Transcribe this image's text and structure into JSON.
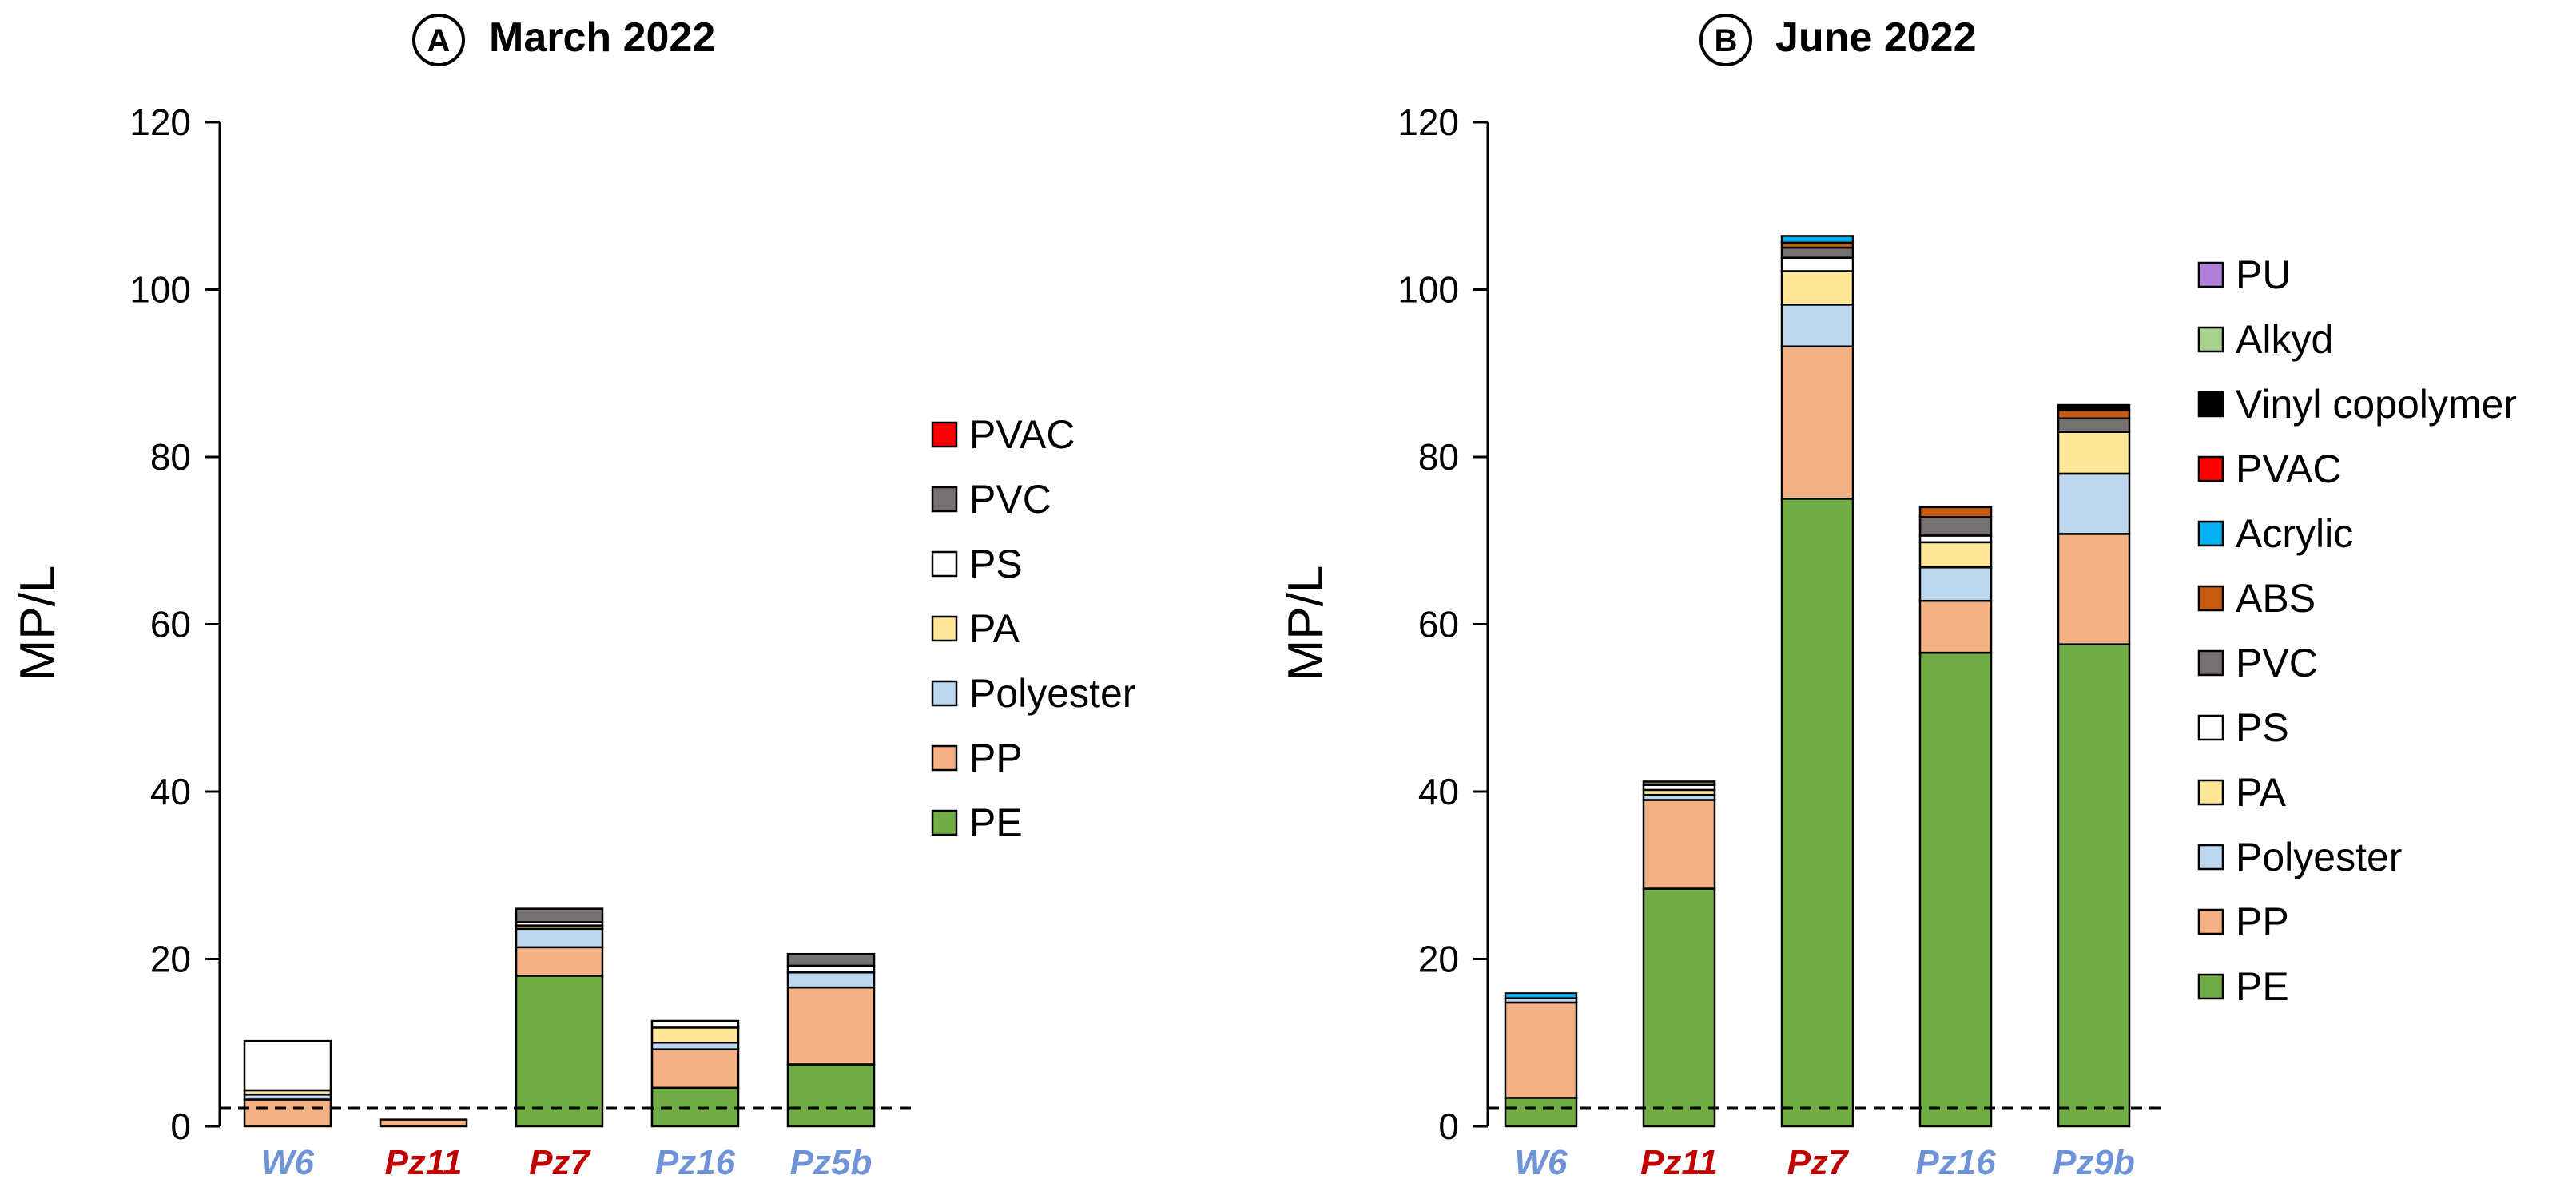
{
  "figure": {
    "panels": [
      {
        "letter": "A",
        "title": "March 2022",
        "ylabel": "MP/L",
        "ylim": [
          0,
          120
        ],
        "yticks": [
          0,
          20,
          40,
          60,
          80,
          100,
          120
        ],
        "threshold": 2.2
      },
      {
        "letter": "B",
        "title": "June 2022",
        "ylabel": "MP/L",
        "ylim": [
          0,
          120
        ],
        "yticks": [
          0,
          20,
          40,
          60,
          80,
          100,
          120
        ],
        "threshold": 2.2
      }
    ]
  },
  "chart_data": [
    {
      "type": "bar",
      "stacked": true,
      "title": "March 2022",
      "ylabel": "MP/L",
      "ylim": [
        0,
        120
      ],
      "grid": false,
      "legend_position": "right",
      "threshold_line": 2.2,
      "categories": [
        {
          "label": "W6",
          "color": "#6e93d6"
        },
        {
          "label": "Pz11",
          "color": "#c00000"
        },
        {
          "label": "Pz7",
          "color": "#c00000"
        },
        {
          "label": "Pz16",
          "color": "#6e93d6"
        },
        {
          "label": "Pz5b",
          "color": "#6e93d6"
        }
      ],
      "series": [
        {
          "name": "PE",
          "color": "#70ad47",
          "values": [
            0,
            0,
            18.0,
            4.6,
            7.4
          ]
        },
        {
          "name": "PP",
          "color": "#f4b183",
          "values": [
            3.2,
            0.8,
            3.4,
            4.6,
            9.2
          ]
        },
        {
          "name": "Polyester",
          "color": "#bdd7ee",
          "values": [
            0.6,
            0,
            2.2,
            0.8,
            1.8
          ]
        },
        {
          "name": "PA",
          "color": "#ffe699",
          "values": [
            0.5,
            0,
            0.4,
            1.8,
            0
          ]
        },
        {
          "name": "PS",
          "color": "#ffffff",
          "values": [
            5.9,
            0,
            0.4,
            0.8,
            0.8
          ]
        },
        {
          "name": "PVC",
          "color": "#767171",
          "values": [
            0,
            0,
            1.6,
            0,
            1.4
          ]
        },
        {
          "name": "PVAC",
          "color": "#ff0000",
          "values": [
            0,
            0,
            0,
            0,
            0
          ]
        }
      ]
    },
    {
      "type": "bar",
      "stacked": true,
      "title": "June 2022",
      "ylabel": "MP/L",
      "ylim": [
        0,
        120
      ],
      "grid": false,
      "legend_position": "right",
      "threshold_line": 2.2,
      "categories": [
        {
          "label": "W6",
          "color": "#6e93d6"
        },
        {
          "label": "Pz11",
          "color": "#c00000"
        },
        {
          "label": "Pz7",
          "color": "#c00000"
        },
        {
          "label": "Pz16",
          "color": "#6e93d6"
        },
        {
          "label": "Pz9b",
          "color": "#6e93d6"
        }
      ],
      "series": [
        {
          "name": "PE",
          "color": "#70ad47",
          "values": [
            3.4,
            28.4,
            75.0,
            56.6,
            57.6
          ]
        },
        {
          "name": "PP",
          "color": "#f4b183",
          "values": [
            11.4,
            10.6,
            18.2,
            6.2,
            13.2
          ]
        },
        {
          "name": "Polyester",
          "color": "#bdd7ee",
          "values": [
            0.5,
            0.6,
            5.0,
            4.0,
            7.2
          ]
        },
        {
          "name": "PA",
          "color": "#ffe699",
          "values": [
            0,
            0.6,
            4.0,
            3.0,
            5.0
          ]
        },
        {
          "name": "PS",
          "color": "#ffffff",
          "values": [
            0,
            0.6,
            1.6,
            0.8,
            0
          ]
        },
        {
          "name": "PVC",
          "color": "#767171",
          "values": [
            0,
            0.4,
            1.2,
            2.2,
            1.6
          ]
        },
        {
          "name": "ABS",
          "color": "#c55a11",
          "values": [
            0,
            0,
            0.6,
            1.2,
            1.0
          ]
        },
        {
          "name": "Acrylic",
          "color": "#00b0f0",
          "values": [
            0.6,
            0,
            0.8,
            0,
            0
          ]
        },
        {
          "name": "PVAC",
          "color": "#ff0000",
          "values": [
            0,
            0,
            0,
            0,
            0
          ]
        },
        {
          "name": "Vinyl copolymer",
          "color": "#000000",
          "values": [
            0,
            0,
            0,
            0,
            0.6
          ]
        },
        {
          "name": "Alkyd",
          "color": "#a9d18e",
          "values": [
            0,
            0,
            0,
            0,
            0
          ]
        },
        {
          "name": "PU",
          "color": "#b180d8",
          "values": [
            0,
            0,
            0,
            0,
            0
          ]
        }
      ]
    }
  ]
}
